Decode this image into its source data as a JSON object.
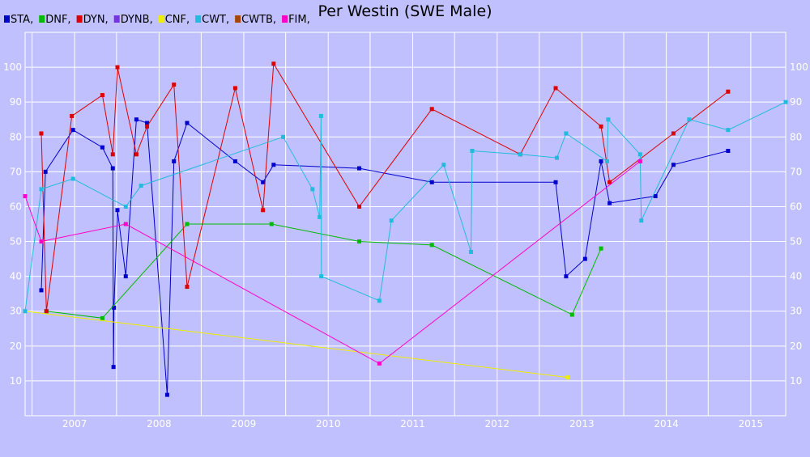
{
  "chart_data": {
    "type": "line",
    "title": "Per Westin (SWE Male)",
    "xlabel": "",
    "ylabel": "",
    "x_is_date": true,
    "xlim": [
      "2006-06-01",
      "2015-06-01"
    ],
    "ylim": [
      0,
      110
    ],
    "grid": true,
    "legend_position": "top-left",
    "x_tick_labels": [
      "2007",
      "2008",
      "2009",
      "2010",
      "2011",
      "2012",
      "2013",
      "2014",
      "2015"
    ],
    "y_tick_labels": [
      "10",
      "20",
      "30",
      "40",
      "50",
      "60",
      "70",
      "80",
      "90",
      "100"
    ],
    "colors": {
      "background": "#c0c0ff",
      "grid": "#ffffff",
      "axis": "#ffffff"
    },
    "series": [
      {
        "name": "STA,",
        "color": "#0000cc",
        "points": [
          {
            "x": "2006-08-10",
            "y": 36
          },
          {
            "x": "2006-08-28",
            "y": 70
          },
          {
            "x": "2006-12-25",
            "y": 82
          },
          {
            "x": "2007-05-01",
            "y": 77
          },
          {
            "x": "2007-06-15",
            "y": 71
          },
          {
            "x": "2007-06-18",
            "y": 14
          },
          {
            "x": "2007-06-20",
            "y": 31
          },
          {
            "x": "2007-07-05",
            "y": 59
          },
          {
            "x": "2007-08-10",
            "y": 40
          },
          {
            "x": "2007-09-25",
            "y": 85
          },
          {
            "x": "2007-11-10",
            "y": 84
          },
          {
            "x": "2008-02-05",
            "y": 6
          },
          {
            "x": "2008-03-05",
            "y": 73
          },
          {
            "x": "2008-05-01",
            "y": 84
          },
          {
            "x": "2008-11-25",
            "y": 73
          },
          {
            "x": "2009-03-25",
            "y": 67
          },
          {
            "x": "2009-05-10",
            "y": 72
          },
          {
            "x": "2010-05-15",
            "y": 71
          },
          {
            "x": "2011-03-25",
            "y": 67
          },
          {
            "x": "2012-09-10",
            "y": 67
          },
          {
            "x": "2012-10-25",
            "y": 40
          },
          {
            "x": "2013-01-15",
            "y": 45
          },
          {
            "x": "2013-03-25",
            "y": 73
          },
          {
            "x": "2013-05-01",
            "y": 61
          },
          {
            "x": "2013-11-15",
            "y": 63
          },
          {
            "x": "2014-02-01",
            "y": 72
          },
          {
            "x": "2014-09-25",
            "y": 76
          }
        ]
      },
      {
        "name": "DNF,",
        "color": "#00bb00",
        "points": [
          {
            "x": "2006-09-01",
            "y": 30
          },
          {
            "x": "2007-05-01",
            "y": 28
          },
          {
            "x": "2008-05-01",
            "y": 55
          },
          {
            "x": "2009-05-01",
            "y": 55
          },
          {
            "x": "2010-05-15",
            "y": 50
          },
          {
            "x": "2011-03-25",
            "y": 49
          },
          {
            "x": "2012-11-20",
            "y": 29
          },
          {
            "x": "2013-03-25",
            "y": 48
          }
        ]
      },
      {
        "name": "DYN,",
        "color": "#dd0000",
        "points": [
          {
            "x": "2006-08-10",
            "y": 81
          },
          {
            "x": "2006-09-01",
            "y": 30
          },
          {
            "x": "2006-12-20",
            "y": 86
          },
          {
            "x": "2007-05-01",
            "y": 92
          },
          {
            "x": "2007-06-15",
            "y": 75
          },
          {
            "x": "2007-07-05",
            "y": 100
          },
          {
            "x": "2007-09-25",
            "y": 75
          },
          {
            "x": "2007-11-10",
            "y": 83
          },
          {
            "x": "2008-03-05",
            "y": 95
          },
          {
            "x": "2008-05-01",
            "y": 37
          },
          {
            "x": "2008-11-25",
            "y": 94
          },
          {
            "x": "2009-03-25",
            "y": 59
          },
          {
            "x": "2009-05-10",
            "y": 101
          },
          {
            "x": "2010-05-15",
            "y": 60
          },
          {
            "x": "2011-03-25",
            "y": 88
          },
          {
            "x": "2012-04-10",
            "y": 75
          },
          {
            "x": "2012-09-10",
            "y": 94
          },
          {
            "x": "2013-03-25",
            "y": 83
          },
          {
            "x": "2013-05-01",
            "y": 67
          },
          {
            "x": "2014-02-01",
            "y": 81
          },
          {
            "x": "2014-09-25",
            "y": 93
          }
        ]
      },
      {
        "name": "DYNB,",
        "color": "#7733dd",
        "points": []
      },
      {
        "name": "CNF,",
        "color": "#eeee00",
        "points": [
          {
            "x": "2006-06-01",
            "y": 30
          },
          {
            "x": "2012-11-01",
            "y": 11
          }
        ]
      },
      {
        "name": "CWT,",
        "color": "#22bbdd",
        "points": [
          {
            "x": "2006-06-01",
            "y": 30
          },
          {
            "x": "2006-08-10",
            "y": 65
          },
          {
            "x": "2006-12-25",
            "y": 68
          },
          {
            "x": "2007-08-10",
            "y": 60
          },
          {
            "x": "2007-10-15",
            "y": 66
          },
          {
            "x": "2009-06-20",
            "y": 80
          },
          {
            "x": "2009-10-25",
            "y": 65
          },
          {
            "x": "2009-11-25",
            "y": 57
          },
          {
            "x": "2009-12-01",
            "y": 86
          },
          {
            "x": "2009-12-02",
            "y": 40
          },
          {
            "x": "2010-08-10",
            "y": 33
          },
          {
            "x": "2010-10-01",
            "y": 56
          },
          {
            "x": "2011-05-15",
            "y": 72
          },
          {
            "x": "2011-09-10",
            "y": 47
          },
          {
            "x": "2011-09-15",
            "y": 76
          },
          {
            "x": "2012-04-10",
            "y": 75
          },
          {
            "x": "2012-09-15",
            "y": 74
          },
          {
            "x": "2012-10-25",
            "y": 81
          },
          {
            "x": "2013-04-20",
            "y": 73
          },
          {
            "x": "2013-04-25",
            "y": 85
          },
          {
            "x": "2013-09-10",
            "y": 75
          },
          {
            "x": "2013-09-15",
            "y": 56
          },
          {
            "x": "2014-04-10",
            "y": 85
          },
          {
            "x": "2014-09-25",
            "y": 82
          },
          {
            "x": "2015-06-01",
            "y": 90
          }
        ]
      },
      {
        "name": "CWTB,",
        "color": "#aa4400",
        "points": []
      },
      {
        "name": "FIM,",
        "color": "#ff00cc",
        "points": [
          {
            "x": "2006-06-01",
            "y": 63
          },
          {
            "x": "2006-08-10",
            "y": 50
          },
          {
            "x": "2007-08-10",
            "y": 55
          },
          {
            "x": "2010-08-10",
            "y": 15
          },
          {
            "x": "2013-09-10",
            "y": 73
          }
        ]
      }
    ]
  }
}
